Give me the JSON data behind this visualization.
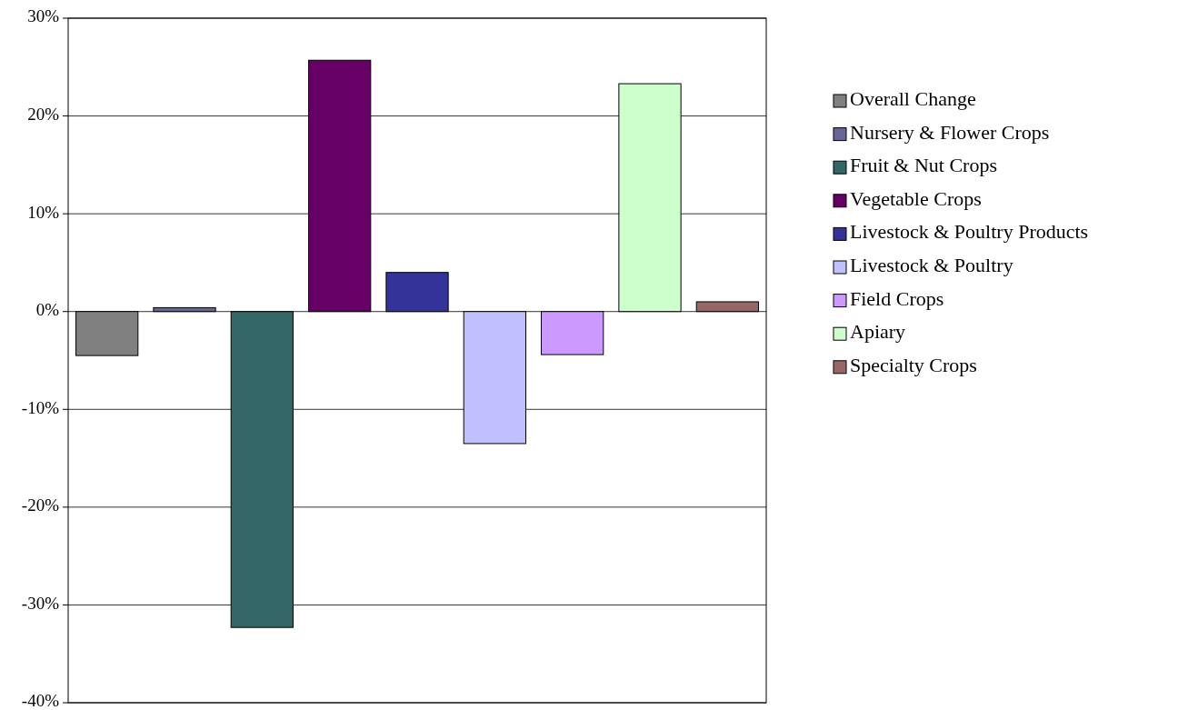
{
  "chart_data": {
    "type": "bar",
    "categories": [
      null
    ],
    "series": [
      {
        "name": "Overall Change",
        "color": "#808080",
        "values": [
          -4.5
        ]
      },
      {
        "name": "Nursery & Flower Crops",
        "color": "#666699",
        "values": [
          0.4
        ]
      },
      {
        "name": "Fruit & Nut Crops",
        "color": "#336666",
        "values": [
          -32.3
        ]
      },
      {
        "name": "Vegetable Crops",
        "color": "#660066",
        "values": [
          25.7
        ]
      },
      {
        "name": "Livestock & Poultry Products",
        "color": "#333399",
        "values": [
          4.0
        ]
      },
      {
        "name": "Livestock & Poultry",
        "color": "#c0c0ff",
        "values": [
          -13.5
        ]
      },
      {
        "name": "Field Crops",
        "color": "#cc99ff",
        "values": [
          -4.4
        ]
      },
      {
        "name": "Apiary",
        "color": "#ccffcc",
        "values": [
          23.3
        ]
      },
      {
        "name": "Specialty Crops",
        "color": "#996666",
        "values": [
          1.0
        ]
      }
    ],
    "ylim": [
      -40,
      30
    ],
    "yticks": [
      {
        "value": -40,
        "label": "-40%"
      },
      {
        "value": -30,
        "label": "-30%"
      },
      {
        "value": -20,
        "label": "-20%"
      },
      {
        "value": -10,
        "label": "-10%"
      },
      {
        "value": 0,
        "label": "0%"
      },
      {
        "value": 10,
        "label": "10%"
      },
      {
        "value": 20,
        "label": "20%"
      },
      {
        "value": 30,
        "label": "30%"
      }
    ],
    "grid": "y",
    "legend": "right"
  }
}
